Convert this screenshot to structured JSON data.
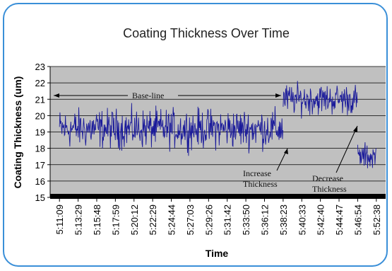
{
  "chart_data": {
    "type": "line",
    "title": "Coating Thickness Over Time",
    "xlabel": "Time",
    "ylabel": "Coating Thickness (um)",
    "ylim": [
      15,
      23
    ],
    "yticks": [
      15,
      16,
      17,
      18,
      19,
      20,
      21,
      22,
      23
    ],
    "grid": true,
    "x_tick_labels": [
      "5:11:09",
      "5:13:29",
      "5:15:48",
      "5:17:59",
      "5:20:12",
      "5:22:29",
      "5:24:44",
      "5:27:03",
      "5:29:26",
      "5:31:42",
      "5:33:50",
      "5:36:12",
      "5:38:23",
      "5:40:33",
      "5:42:40",
      "5:44:47",
      "5:46:54",
      "5:52:38"
    ],
    "series": [
      {
        "color": "#1a1a9a",
        "segments": [
          {
            "from": "5:11:09",
            "to": "5:38:23",
            "mean": 19.2,
            "noise": 0.9
          },
          {
            "from": "5:38:23",
            "to": "5:46:54",
            "mean": 21.0,
            "noise": 0.7
          },
          {
            "from": "5:46:54",
            "to": "5:52:38",
            "mean": 17.5,
            "noise": 0.6
          }
        ]
      }
    ],
    "annotations": [
      {
        "text": "Base-line",
        "type": "double-arrow"
      },
      {
        "text": "Increase",
        "line2": "Thickness",
        "type": "arrow"
      },
      {
        "text": "Decrease",
        "line2": "Thickness",
        "type": "arrow"
      }
    ]
  }
}
